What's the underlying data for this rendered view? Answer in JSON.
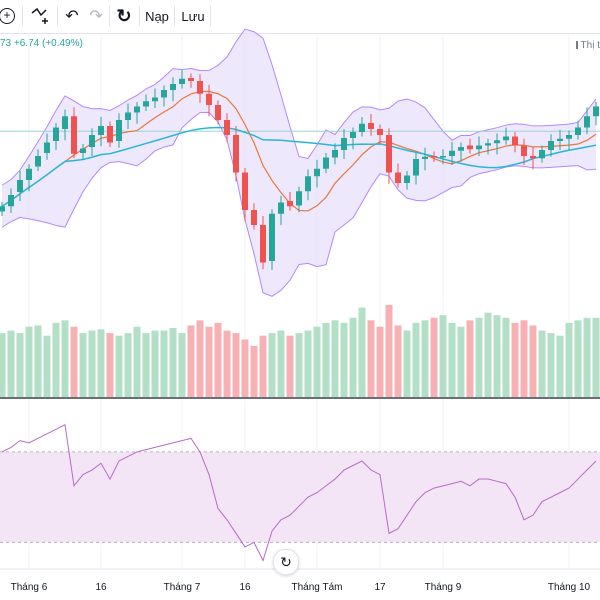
{
  "toolbar": {
    "add_label": "+",
    "undo_label": "↶",
    "redo_label": "↷",
    "reload_label": "↻",
    "load_label": "Nạp",
    "save_label": "Lưu"
  },
  "header": {
    "price_text": "73 +6.74 (+0.49%)",
    "market_tag": "Thị t"
  },
  "colors": {
    "up": "#26a69a",
    "down": "#ef5350",
    "vol_up": "#b2dfc6",
    "vol_down": "#f7b0b3",
    "ma_fast": "#e8773a",
    "ma_slow": "#27b6d8",
    "band_edge": "#b388ff",
    "band_fill": "#e8e0fb",
    "rsi_line": "#b76bc8",
    "rsi_fill": "#f3e5f5"
  },
  "chart_data": {
    "type": "candlestick",
    "price_range": [
      1080,
      1420
    ],
    "rsi_range": [
      20,
      85
    ],
    "rsi_bands": [
      30,
      70
    ],
    "hline": 1305,
    "x_ticks": [
      {
        "i": 3,
        "label": "Tháng 6"
      },
      {
        "i": 11,
        "label": "16"
      },
      {
        "i": 20,
        "label": "Tháng 7"
      },
      {
        "i": 27,
        "label": "16"
      },
      {
        "i": 35,
        "label": "Tháng Tám"
      },
      {
        "i": 42,
        "label": "17"
      },
      {
        "i": 49,
        "label": "Tháng 9"
      },
      {
        "i": 63,
        "label": "Tháng 10"
      }
    ],
    "close": [
      1205,
      1220,
      1240,
      1255,
      1272,
      1290,
      1310,
      1325,
      1275,
      1282,
      1300,
      1312,
      1290,
      1320,
      1330,
      1338,
      1345,
      1350,
      1360,
      1368,
      1375,
      1372,
      1355,
      1340,
      1320,
      1300,
      1250,
      1200,
      1180,
      1130,
      1195,
      1210,
      1205,
      1225,
      1245,
      1255,
      1270,
      1280,
      1296,
      1304,
      1315,
      1308,
      1300,
      1250,
      1236,
      1246,
      1268,
      1271,
      1270,
      1272,
      1279,
      1284,
      1281,
      1286,
      1289,
      1293,
      1298,
      1286,
      1272,
      1269,
      1280,
      1292,
      1295,
      1300,
      1310,
      1325,
      1338
    ],
    "open": [
      1198,
      1205,
      1224,
      1240,
      1258,
      1276,
      1292,
      1308,
      1325,
      1276,
      1284,
      1300,
      1312,
      1292,
      1320,
      1330,
      1338,
      1345,
      1350,
      1360,
      1368,
      1376,
      1372,
      1355,
      1340,
      1320,
      1300,
      1250,
      1200,
      1180,
      1132,
      1195,
      1212,
      1206,
      1225,
      1245,
      1255,
      1270,
      1280,
      1296,
      1304,
      1316,
      1308,
      1300,
      1250,
      1236,
      1246,
      1268,
      1272,
      1270,
      1272,
      1279,
      1286,
      1281,
      1286,
      1289,
      1293,
      1298,
      1286,
      1272,
      1269,
      1280,
      1292,
      1295,
      1300,
      1310,
      1325
    ],
    "volume": [
      50,
      52,
      50,
      55,
      56,
      48,
      58,
      60,
      55,
      50,
      52,
      53,
      50,
      48,
      50,
      55,
      50,
      52,
      52,
      54,
      50,
      56,
      60,
      55,
      58,
      52,
      50,
      45,
      40,
      48,
      50,
      52,
      48,
      50,
      52,
      55,
      58,
      60,
      58,
      62,
      70,
      60,
      55,
      72,
      56,
      52,
      58,
      60,
      62,
      64,
      58,
      55,
      60,
      62,
      66,
      64,
      62,
      58,
      60,
      56,
      52,
      50,
      48,
      58,
      60,
      62,
      62
    ],
    "rsi": [
      70,
      72,
      75,
      74,
      76,
      78,
      80,
      82,
      55,
      60,
      62,
      65,
      58,
      66,
      68,
      70,
      71,
      72,
      73,
      74,
      75,
      76,
      70,
      60,
      45,
      40,
      34,
      28,
      30,
      22,
      35,
      40,
      42,
      46,
      50,
      52,
      55,
      58,
      62,
      64,
      66,
      62,
      60,
      34,
      36,
      42,
      48,
      52,
      54,
      55,
      56,
      57,
      55,
      58,
      58,
      57,
      56,
      50,
      40,
      42,
      48,
      50,
      52,
      54,
      58,
      62,
      66
    ]
  }
}
